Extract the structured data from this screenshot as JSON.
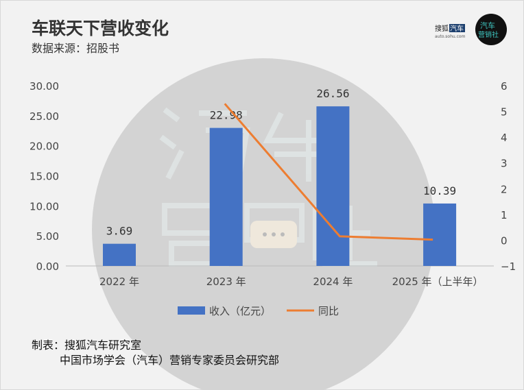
{
  "chart_data": {
    "type": "bar+line",
    "title": "车联天下营收变化",
    "subtitle": "数据来源：招股书",
    "categories": [
      "2022 年",
      "2023 年",
      "2024 年",
      "2025 年（上半年）"
    ],
    "series": [
      {
        "name": "收入（亿元）",
        "type": "bar",
        "axis": "left",
        "values": [
          3.69,
          22.98,
          26.56,
          10.39
        ],
        "labels": [
          "3.69",
          "22.98",
          "26.56",
          "10.39"
        ]
      },
      {
        "name": "同比",
        "type": "line",
        "axis": "right",
        "values": [
          null,
          5.3,
          0.15,
          0.02
        ]
      }
    ],
    "left_ticks": [
      "0.00",
      "5.00",
      "10.00",
      "15.00",
      "20.00",
      "25.00",
      "30.00"
    ],
    "right_ticks": [
      "-1",
      "0",
      "1",
      "2",
      "3",
      "4",
      "5",
      "6"
    ],
    "ylim_left": [
      0,
      30
    ],
    "ylim_right": [
      -1,
      6
    ],
    "legend_position": "bottom",
    "colors": {
      "bar": "#4472c4",
      "line": "#ed7d31"
    }
  },
  "logo": {
    "brand": "搜狐汽车",
    "url_text": "auto.sohu.com",
    "badge": "汽车营销社"
  },
  "watermark": "汽车营销社",
  "footer": {
    "line1": "制表：搜狐汽车研究室",
    "line2": "中国市场学会（汽车）营销专家委员会研究部"
  }
}
